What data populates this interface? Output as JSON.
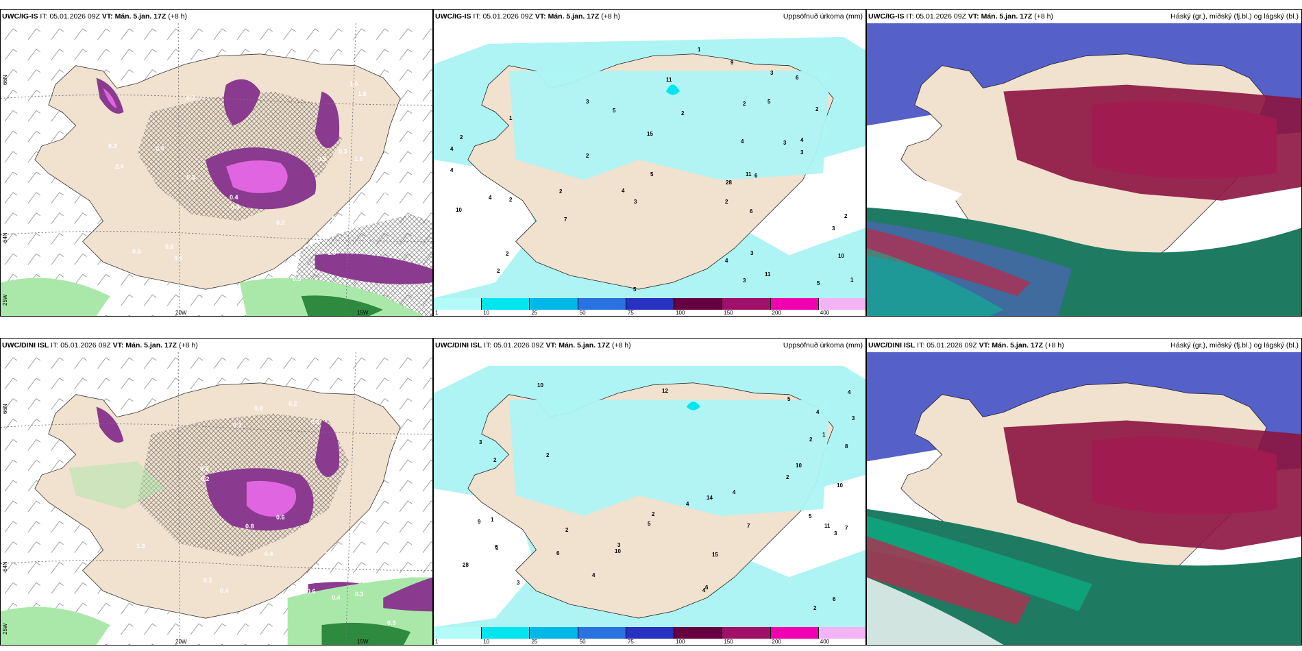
{
  "panels": {
    "top_left": {
      "model": "UWC/IG-IS",
      "it_label": "IT:",
      "it_value": "05.01.2026 09Z",
      "vt_label": "VT:",
      "vt_value": "Mán. 5.jan. 17Z",
      "lead": "(+8 h)"
    },
    "top_mid": {
      "model": "UWC/IG-IS",
      "it_label": "IT:",
      "it_value": "05.01.2026 09Z",
      "vt_label": "VT:",
      "vt_value": "Mán. 5.jan. 17Z",
      "lead": "(+8 h)",
      "product": "Uppsöfnuð úrkoma (mm)"
    },
    "top_right": {
      "model": "UWC/IG-IS",
      "it_label": "IT:",
      "it_value": "05.01.2026 09Z",
      "vt_label": "VT:",
      "vt_value": "Mán. 5.jan. 17Z",
      "lead": "(+8 h)",
      "product": "Háský (gr.), miðský (fj.bl.) og lágský (bl.)"
    },
    "bottom_left": {
      "model": "UWC/DINI ISL",
      "it_label": "IT:",
      "it_value": "05.01.2026 09Z",
      "vt_label": "VT:",
      "vt_value": "Mán. 5.jan. 17Z",
      "lead": "(+8 h)"
    },
    "bottom_mid": {
      "model": "UWC/DINI ISL",
      "it_label": "IT:",
      "it_value": "05.01.2026 09Z",
      "vt_label": "VT:",
      "vt_value": "Mán. 5.jan. 17Z",
      "lead": "(+8 h)",
      "product": "Uppsöfnuð úrkoma (mm)"
    },
    "bottom_right": {
      "model": "UWC/DINI ISL",
      "it_label": "IT:",
      "it_value": "05.01.2026 09Z",
      "vt_label": "VT:",
      "vt_value": "Mán. 5.jan. 17Z",
      "lead": "(+8 h)",
      "product": "Háský (gr.), miðský (fj.bl.) og lágský (bl.)"
    }
  },
  "axes": {
    "lat_66": "66N",
    "lat_64": "64N",
    "lon_25": "25W",
    "lon_20": "20W",
    "lon_15": "15W"
  },
  "colorbar": {
    "ticks": [
      "1",
      "10",
      "25",
      "50",
      "75",
      "100",
      "150",
      "200",
      "400"
    ],
    "colors": [
      "#b3fbf8",
      "#00e5f0",
      "#00b8e8",
      "#2a72e0",
      "#2733c0",
      "#660040",
      "#a0106a",
      "#f000b0",
      "#f4b3f4"
    ]
  },
  "colors": {
    "land": "#f1e1cf",
    "precip_light": "#aef4f4",
    "snow_purple": "#8a3a8f",
    "snow_pink": "#e065e0",
    "green": "#a9e8a9",
    "high_cloud": "#1f7a62",
    "mid_cloud": "#5560c8",
    "low_cloud": "#8c1440"
  },
  "top_left_values": [
    "0.5",
    "0.7",
    "0.6",
    "0.4",
    "0.3",
    "0.5",
    "0.6",
    "0.3",
    "0.4",
    "0.6",
    "0.5",
    "0.3",
    "0.4",
    "0.3",
    "0.5",
    "1.6",
    "2.4",
    "1.8",
    "0.6",
    "1.6",
    "1.9"
  ],
  "bottom_left_values": [
    "0.8",
    "0.7",
    "0.6",
    "0.4",
    "0.3",
    "0.2",
    "0.3",
    "0.6",
    "0.4",
    "0.5",
    "0.3",
    "0.2",
    "0.4",
    "0.8",
    "0.6",
    "0.5",
    "1.2",
    "1.3",
    "0.8",
    "0.5"
  ],
  "top_mid_values": [
    "2",
    "2",
    "3",
    "3",
    "4",
    "5",
    "4",
    "15",
    "10",
    "11",
    "11",
    "28",
    "10",
    "6",
    "7",
    "5",
    "6",
    "4",
    "3",
    "5",
    "3",
    "4",
    "4",
    "9",
    "3",
    "2",
    "1",
    "2",
    "1",
    "2",
    "2",
    "1",
    "2",
    "3",
    "2",
    "2",
    "2",
    "5",
    "6",
    "3",
    "4",
    "2",
    "11",
    "5",
    "4",
    "3"
  ],
  "bottom_mid_values": [
    "2",
    "1",
    "3",
    "4",
    "11",
    "10",
    "2",
    "2",
    "3",
    "10",
    "12",
    "28",
    "14",
    "8",
    "5",
    "5",
    "7",
    "9",
    "6",
    "10",
    "4",
    "5",
    "6",
    "7",
    "3",
    "4",
    "2",
    "1",
    "1",
    "4",
    "3",
    "2",
    "2",
    "3",
    "2",
    "4",
    "15",
    "6",
    "10",
    "4",
    "6"
  ]
}
